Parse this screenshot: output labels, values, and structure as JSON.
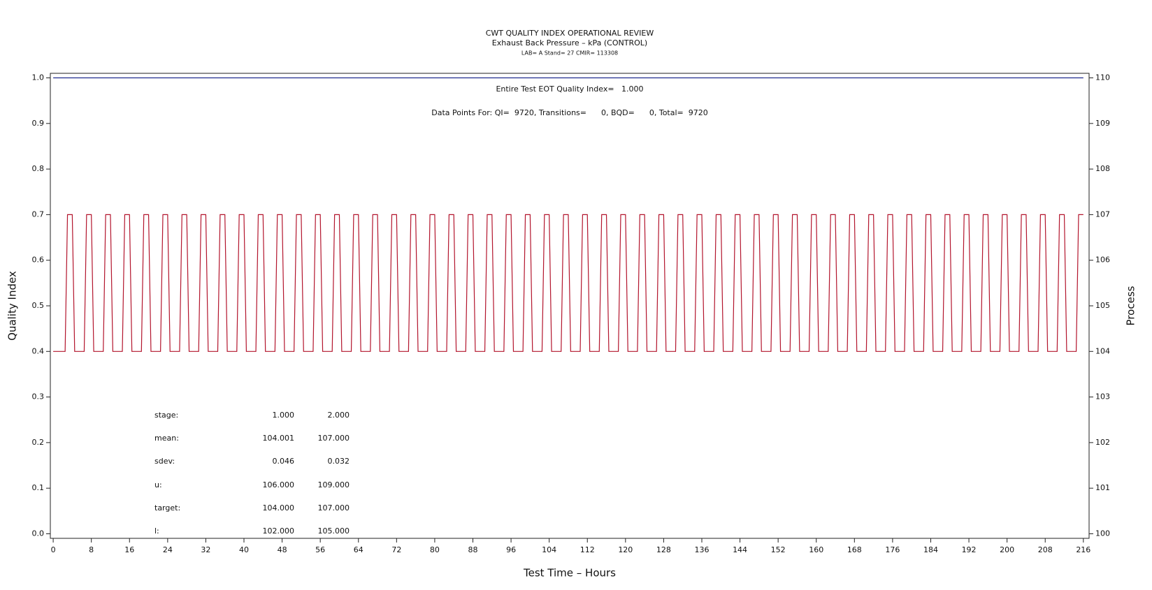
{
  "chart_data": {
    "type": "line",
    "title": "CWT QUALITY INDEX OPERATIONAL REVIEW",
    "subtitle": "Exhaust Back Pressure – kPa (CONTROL)",
    "subsubtitle": "LAB= A Stand= 27 CMIR= 113308",
    "annotations": [
      "Entire Test EOT Quality Index=   1.000",
      "Data Points For: QI=  9720, Transitions=      0, BQD=      0, Total=  9720"
    ],
    "x_label": "Test Time – Hours",
    "y_label": "Quality Index",
    "y2_label": "Process",
    "xlim": [
      -0.6,
      217.2
    ],
    "xticks": [
      0,
      8,
      16,
      24,
      32,
      40,
      48,
      56,
      64,
      72,
      80,
      88,
      96,
      104,
      112,
      120,
      128,
      136,
      144,
      152,
      160,
      168,
      176,
      184,
      192,
      200,
      208,
      216
    ],
    "ylim": [
      -0.01,
      1.01
    ],
    "yticks": [
      {
        "value": 0,
        "label": "0.0"
      },
      0.1,
      0.2,
      0.3,
      0.4,
      0.5,
      0.6,
      0.7,
      0.8,
      0.9,
      {
        "value": 1,
        "label": "1.0"
      }
    ],
    "y2lim": [
      99.9,
      110.1
    ],
    "y2ticks": [
      100,
      101,
      102,
      103,
      104,
      105,
      106,
      107,
      108,
      109,
      110
    ],
    "series": [
      {
        "color": "#1f2a8f",
        "x": [
          0,
          216
        ],
        "values": [
          1,
          1
        ]
      },
      {
        "color": "#b3152d",
        "axis": "y2",
        "x": [
          0,
          2.5,
          3,
          4,
          4.5,
          6.5,
          7,
          8,
          8.5,
          10.5,
          11,
          12,
          12.5,
          14.5,
          15,
          16,
          16.5,
          18.5,
          19,
          20,
          20.5,
          22.5,
          23,
          24,
          24.5,
          26.5,
          27,
          28,
          28.5,
          30.5,
          31,
          32,
          32.5,
          34.5,
          35,
          36,
          36.5,
          38.5,
          39,
          40,
          40.5,
          42.5,
          43,
          44,
          44.5,
          46.5,
          47,
          48,
          48.5,
          50.5,
          51,
          52,
          52.5,
          54.5,
          55,
          56,
          56.5,
          58.5,
          59,
          60,
          60.5,
          62.5,
          63,
          64,
          64.5,
          66.5,
          67,
          68,
          68.5,
          70.5,
          71,
          72,
          72.5,
          74.5,
          75,
          76,
          76.5,
          78.5,
          79,
          80,
          80.5,
          82.5,
          83,
          84,
          84.5,
          86.5,
          87,
          88,
          88.5,
          90.5,
          91,
          92,
          92.5,
          94.5,
          95,
          96,
          96.5,
          98.5,
          99,
          100,
          100.5,
          102.5,
          103,
          104,
          104.5,
          106.5,
          107,
          108,
          108.5,
          110.5,
          111,
          112,
          112.5,
          114.5,
          115,
          116,
          116.5,
          118.5,
          119,
          120,
          120.5,
          122.5,
          123,
          124,
          124.5,
          126.5,
          127,
          128,
          128.5,
          130.5,
          131,
          132,
          132.5,
          134.5,
          135,
          136,
          136.5,
          138.5,
          139,
          140,
          140.5,
          142.5,
          143,
          144,
          144.5,
          146.5,
          147,
          148,
          148.5,
          150.5,
          151,
          152,
          152.5,
          154.5,
          155,
          156,
          156.5,
          158.5,
          159,
          160,
          160.5,
          162.5,
          163,
          164,
          164.5,
          166.5,
          167,
          168,
          168.5,
          170.5,
          171,
          172,
          172.5,
          174.5,
          175,
          176,
          176.5,
          178.5,
          179,
          180,
          180.5,
          182.5,
          183,
          184,
          184.5,
          186.5,
          187,
          188,
          188.5,
          190.5,
          191,
          192,
          192.5,
          194.5,
          195,
          196,
          196.5,
          198.5,
          199,
          200,
          200.5,
          202.5,
          203,
          204,
          204.5,
          206.5,
          207,
          208,
          208.5,
          210.5,
          211,
          212,
          212.5,
          214.5,
          215,
          216
        ],
        "values": [
          104,
          104,
          107,
          107,
          104,
          104,
          107,
          107,
          104,
          104,
          107,
          107,
          104,
          104,
          107,
          107,
          104,
          104,
          107,
          107,
          104,
          104,
          107,
          107,
          104,
          104,
          107,
          107,
          104,
          104,
          107,
          107,
          104,
          104,
          107,
          107,
          104,
          104,
          107,
          107,
          104,
          104,
          107,
          107,
          104,
          104,
          107,
          107,
          104,
          104,
          107,
          107,
          104,
          104,
          107,
          107,
          104,
          104,
          107,
          107,
          104,
          104,
          107,
          107,
          104,
          104,
          107,
          107,
          104,
          104,
          107,
          107,
          104,
          104,
          107,
          107,
          104,
          104,
          107,
          107,
          104,
          104,
          107,
          107,
          104,
          104,
          107,
          107,
          104,
          104,
          107,
          107,
          104,
          104,
          107,
          107,
          104,
          104,
          107,
          107,
          104,
          104,
          107,
          107,
          104,
          104,
          107,
          107,
          104,
          104,
          107,
          107,
          104,
          104,
          107,
          107,
          104,
          104,
          107,
          107,
          104,
          104,
          107,
          107,
          104,
          104,
          107,
          107,
          104,
          104,
          107,
          107,
          104,
          104,
          107,
          107,
          104,
          104,
          107,
          107,
          104,
          104,
          107,
          107,
          104,
          104,
          107,
          107,
          104,
          104,
          107,
          107,
          104,
          104,
          107,
          107,
          104,
          104,
          107,
          107,
          104,
          104,
          107,
          107,
          104,
          104,
          107,
          107,
          104,
          104,
          107,
          107,
          104,
          104,
          107,
          107,
          104,
          104,
          107,
          107,
          104,
          104,
          107,
          107,
          104,
          104,
          107,
          107,
          104,
          104,
          107,
          107,
          104,
          104,
          107,
          107,
          104,
          104,
          107,
          107,
          104,
          104,
          107,
          107,
          104,
          104,
          107,
          107,
          104,
          104,
          107,
          107,
          104,
          104,
          107,
          107
        ]
      }
    ],
    "stats_table": [
      [
        "stage:",
        "1.000",
        "2.000"
      ],
      [
        "mean:",
        "104.001",
        "107.000"
      ],
      [
        "sdev:",
        "0.046",
        "0.032"
      ],
      [
        "u:",
        "106.000",
        "109.000"
      ],
      [
        "target:",
        "104.000",
        "107.000"
      ],
      [
        "l:",
        "102.000",
        "105.000"
      ]
    ]
  }
}
